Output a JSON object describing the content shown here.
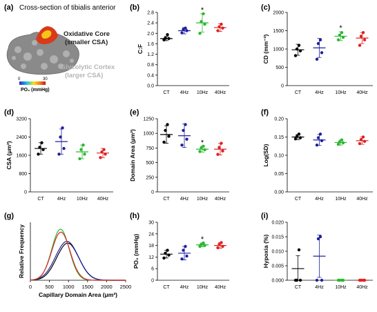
{
  "figure": {
    "panel_a": {
      "letter": "(a)",
      "title": "Cross-section of tibialis anterior",
      "oxidative_line1": "Oxidative Core",
      "oxidative_line2": "(smaller CSA)",
      "glycolytic_line1": "Glycolytic Cortex",
      "glycolytic_line2": "(larger CSA)",
      "scale_min": "0",
      "scale_max": "30",
      "scale_label": "PO₂ (mmHg)",
      "colors": {
        "oxidative": "#d93a1a",
        "glycolytic": "#8a8a8a",
        "glycolytic_label": "#b5b5b5"
      }
    }
  },
  "chart_data": [
    {
      "id": "b",
      "letter": "(b)",
      "type": "scatter",
      "ylabel": "C:F",
      "ylim": [
        0.0,
        2.8
      ],
      "yticks": [
        "0.0",
        "0.4",
        "0.8",
        "1.2",
        "1.6",
        "2.0",
        "2.4",
        "2.8"
      ],
      "categories": [
        "CT",
        "4Hz",
        "10Hz",
        "40Hz"
      ],
      "colors": [
        "#000000",
        "#1f1f9e",
        "#29b82f",
        "#e02020"
      ],
      "groups": [
        {
          "mean": 1.8,
          "sd": 0.08,
          "points": [
            1.75,
            1.8,
            1.82,
            1.95
          ]
        },
        {
          "mean": 2.1,
          "sd": 0.12,
          "points": [
            2.02,
            2.1,
            2.15,
            2.2
          ]
        },
        {
          "mean": 2.4,
          "sd": 0.35,
          "points": [
            2.0,
            2.35,
            2.45,
            2.75
          ]
        },
        {
          "mean": 2.22,
          "sd": 0.15,
          "points": [
            2.1,
            2.2,
            2.25,
            2.35
          ]
        }
      ],
      "significance": [
        {
          "category": "10Hz",
          "label": "*"
        }
      ]
    },
    {
      "id": "c",
      "letter": "(c)",
      "type": "scatter",
      "ylabel": "CD (mm⁻²)",
      "ylim": [
        0,
        2000
      ],
      "yticks": [
        "0",
        "500",
        "1000",
        "1500",
        "2000"
      ],
      "categories": [
        "CT",
        "4Hz",
        "10Hz",
        "40Hz"
      ],
      "colors": [
        "#000000",
        "#1f1f9e",
        "#29b82f",
        "#e02020"
      ],
      "groups": [
        {
          "mean": 980,
          "sd": 150,
          "points": [
            820,
            950,
            1000,
            1100
          ]
        },
        {
          "mean": 1030,
          "sd": 260,
          "points": [
            720,
            900,
            1150,
            1250
          ]
        },
        {
          "mean": 1350,
          "sd": 120,
          "points": [
            1250,
            1320,
            1380,
            1450
          ]
        },
        {
          "mean": 1300,
          "sd": 150,
          "points": [
            1100,
            1250,
            1350,
            1450
          ]
        }
      ],
      "significance": [
        {
          "category": "10Hz",
          "label": "*"
        }
      ]
    },
    {
      "id": "d",
      "letter": "(d)",
      "type": "scatter",
      "ylabel": "CSA (μm²)",
      "ylim": [
        0,
        3200
      ],
      "yticks": [
        "0",
        "800",
        "1600",
        "2400",
        "3200"
      ],
      "categories": [
        "CT",
        "4Hz",
        "10Hz",
        "40Hz"
      ],
      "colors": [
        "#000000",
        "#1f1f9e",
        "#29b82f",
        "#e02020"
      ],
      "groups": [
        {
          "mean": 1900,
          "sd": 250,
          "points": [
            1650,
            1850,
            1950,
            2150
          ]
        },
        {
          "mean": 2200,
          "sd": 550,
          "points": [
            1650,
            1900,
            2400,
            2800
          ]
        },
        {
          "mean": 1750,
          "sd": 300,
          "points": [
            1450,
            1650,
            1850,
            2050
          ]
        },
        {
          "mean": 1700,
          "sd": 200,
          "points": [
            1500,
            1650,
            1750,
            1850
          ]
        }
      ],
      "significance": []
    },
    {
      "id": "e",
      "letter": "(e)",
      "type": "scatter",
      "ylabel": "Domain Area (μm²)",
      "ylim": [
        0,
        1250
      ],
      "yticks": [
        "0",
        "250",
        "500",
        "750",
        "1000",
        "1250"
      ],
      "categories": [
        "CT",
        "4Hz",
        "10Hz",
        "40Hz"
      ],
      "colors": [
        "#000000",
        "#1f1f9e",
        "#29b82f",
        "#e02020"
      ],
      "groups": [
        {
          "mean": 980,
          "sd": 150,
          "points": [
            850,
            950,
            1050,
            1150
          ]
        },
        {
          "mean": 960,
          "sd": 200,
          "points": [
            800,
            900,
            1050,
            1150
          ]
        },
        {
          "mean": 730,
          "sd": 50,
          "points": [
            690,
            720,
            750,
            780
          ]
        },
        {
          "mean": 730,
          "sd": 100,
          "points": [
            640,
            700,
            760,
            830
          ]
        }
      ],
      "significance": [
        {
          "category": "10Hz",
          "label": "*"
        }
      ]
    },
    {
      "id": "f",
      "letter": "(f)",
      "type": "scatter",
      "ylabel": "Log(SD)",
      "ylim": [
        0.0,
        0.2
      ],
      "yticks": [
        "0.00",
        "0.05",
        "0.10",
        "0.15",
        "0.20"
      ],
      "categories": [
        "CT",
        "4Hz",
        "10Hz",
        "40Hz"
      ],
      "colors": [
        "#000000",
        "#1f1f9e",
        "#29b82f",
        "#e02020"
      ],
      "groups": [
        {
          "mean": 0.15,
          "sd": 0.007,
          "points": [
            0.145,
            0.148,
            0.152,
            0.158
          ]
        },
        {
          "mean": 0.142,
          "sd": 0.015,
          "points": [
            0.128,
            0.14,
            0.148,
            0.158
          ]
        },
        {
          "mean": 0.135,
          "sd": 0.007,
          "points": [
            0.13,
            0.134,
            0.137,
            0.142
          ]
        },
        {
          "mean": 0.14,
          "sd": 0.01,
          "points": [
            0.132,
            0.138,
            0.143,
            0.15
          ]
        }
      ],
      "significance": []
    },
    {
      "id": "g",
      "letter": "(g)",
      "type": "line",
      "ylabel": "Relative Frequency",
      "xlabel": "Capillary Domain Area (μm²)",
      "xlim": [
        0,
        2500
      ],
      "xticks": [
        "0",
        "500",
        "1000",
        "1500",
        "2000",
        "2500"
      ],
      "ylim": [
        0,
        0.5
      ],
      "series": [
        {
          "color": "#000000",
          "mu": 980,
          "sigma": 290,
          "peak": 0.32
        },
        {
          "color": "#1f1f9e",
          "mu": 960,
          "sigma": 300,
          "peak": 0.335
        },
        {
          "color": "#29b82f",
          "mu": 790,
          "sigma": 230,
          "peak": 0.44
        },
        {
          "color": "#e02020",
          "mu": 800,
          "sigma": 240,
          "peak": 0.415
        }
      ]
    },
    {
      "id": "h",
      "letter": "(h)",
      "type": "scatter",
      "ylabel": "PO₂ (mmHg)",
      "ylim": [
        0,
        30
      ],
      "yticks": [
        "0",
        "6",
        "12",
        "18",
        "24",
        "30"
      ],
      "categories": [
        "CT",
        "4Hz",
        "10Hz",
        "40Hz"
      ],
      "colors": [
        "#000000",
        "#1f1f9e",
        "#29b82f",
        "#e02020"
      ],
      "groups": [
        {
          "mean": 13.5,
          "sd": 2.0,
          "points": [
            11.5,
            13.0,
            14.0,
            15.5
          ]
        },
        {
          "mean": 14.0,
          "sd": 3.5,
          "points": [
            11.0,
            12.5,
            15.5,
            17.5
          ]
        },
        {
          "mean": 18.3,
          "sd": 1.0,
          "points": [
            17.5,
            18.0,
            18.5,
            19.3
          ]
        },
        {
          "mean": 18.0,
          "sd": 1.5,
          "points": [
            16.8,
            17.5,
            18.5,
            19.5
          ]
        }
      ],
      "significance": [
        {
          "category": "10Hz",
          "label": "*"
        }
      ]
    },
    {
      "id": "i",
      "letter": "(i)",
      "type": "scatter",
      "ylabel": "Hypoxia (%)",
      "ylim": [
        0,
        0.02
      ],
      "yticks": [
        "0.000",
        "0.005",
        "0.010",
        "0.015",
        "0.020"
      ],
      "categories": [
        "CT",
        "4Hz",
        "10Hz",
        "40Hz"
      ],
      "colors": [
        "#000000",
        "#1f1f9e",
        "#29b82f",
        "#e02020"
      ],
      "groups": [
        {
          "mean": 0.004,
          "sd": 0.0045,
          "points": [
            0.0,
            0.0,
            0.0,
            0.0105
          ]
        },
        {
          "mean": 0.0083,
          "sd": 0.0073,
          "points": [
            0.0,
            0.0,
            0.0143,
            0.015
          ]
        },
        {
          "mean": 0.0,
          "sd": 0.0,
          "points": [
            0.0,
            0.0,
            0.0,
            0.0
          ]
        },
        {
          "mean": 0.0,
          "sd": 0.0,
          "points": [
            0.0,
            0.0,
            0.0,
            0.0
          ]
        }
      ],
      "significance": []
    }
  ]
}
